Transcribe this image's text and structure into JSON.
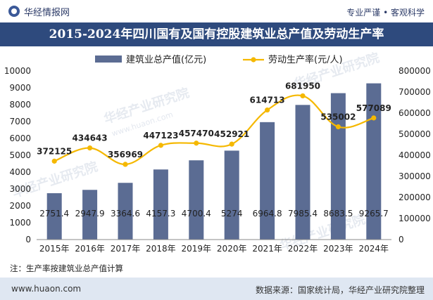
{
  "header": {
    "brand": "华经情报网",
    "tagline": "专业严谨 • 客观科学",
    "title": "2015-2024年四川国有及国有控股建筑业总产值及劳动生产率"
  },
  "footer": {
    "note": "注：生产率按建筑业总产值计算",
    "site": "www.huaon.com",
    "source": "数据来源：国家统计局，华经产业研究院整理"
  },
  "watermark": {
    "text_cn": "华经产业研究院",
    "text_en": "www.huaon.com"
  },
  "colors": {
    "bar": "#5b6c93",
    "line": "#f5b800",
    "title_bg": "#2e4a7d",
    "footer_bg": "#dfe7f2"
  },
  "chart_data": {
    "type": "bar+line",
    "categories": [
      "2015年",
      "2016年",
      "2017年",
      "2018年",
      "2019年",
      "2020年",
      "2021年",
      "2022年",
      "2023年",
      "2024年"
    ],
    "series": [
      {
        "name": "建筑业总产值(亿元)",
        "type": "bar",
        "axis": "left",
        "values": [
          2751.4,
          2947.9,
          3364.6,
          4157.3,
          4700.4,
          5274,
          6964.8,
          7985.4,
          8683.5,
          9265.7
        ],
        "labels": [
          "2751.4",
          "2947.9",
          "3364.6",
          "4157.3",
          "4700.4",
          "5274",
          "6964.8",
          "7985.4",
          "8683.5",
          "9265.7"
        ]
      },
      {
        "name": "劳动生产率(元/人)",
        "type": "line",
        "axis": "right",
        "values": [
          372125,
          434643,
          356969,
          447123,
          457470,
          452921,
          614713,
          681950,
          535002,
          577089
        ],
        "labels": [
          "372125",
          "434643",
          "356969",
          "447123",
          "457470",
          "452921",
          "614713",
          "681950",
          "535002",
          "577089"
        ]
      }
    ],
    "y_left": {
      "min": 0,
      "max": 10000,
      "ticks": [
        "0",
        "1000",
        "2000",
        "3000",
        "4000",
        "5000",
        "6000",
        "7000",
        "8000",
        "9000",
        "10000"
      ]
    },
    "y_right": {
      "min": 0,
      "max": 800000,
      "ticks": [
        "0",
        "100000",
        "200000",
        "300000",
        "400000",
        "500000",
        "600000",
        "700000",
        "800000"
      ]
    },
    "legend_position": "top-center"
  }
}
